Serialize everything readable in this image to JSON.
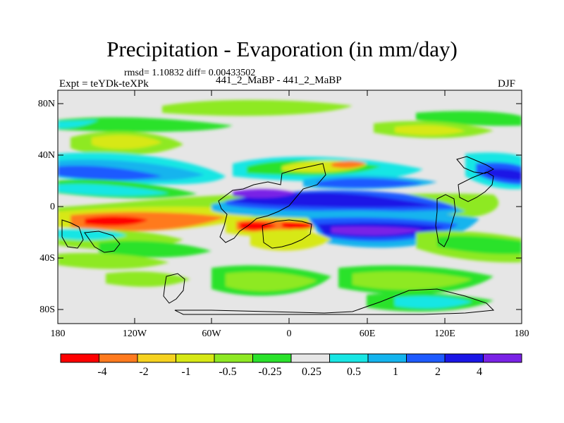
{
  "title": "Precipitation - Evaporation (in mm/day)",
  "stats": "rmsd= 1.10832 diff= 0.00433502",
  "experiment": "Expt = teYDk-teXPk",
  "runs": "441_2_MaBP - 441_2_MaBP",
  "season": "DJF",
  "y_ticks": [
    "80N",
    "40N",
    "0",
    "40S",
    "80S"
  ],
  "x_ticks": [
    "180",
    "120W",
    "60W",
    "0",
    "60E",
    "120E",
    "180"
  ],
  "colorbar": {
    "labels": [
      "-4",
      "-2",
      "-1",
      "-0.5",
      "-0.25",
      "0.25",
      "0.5",
      "1",
      "2",
      "4"
    ],
    "colors": [
      "#ff0000",
      "#ff7a1e",
      "#f6d21f",
      "#d7e815",
      "#8ee923",
      "#2ae22b",
      "#e6e6e6",
      "#18e6e4",
      "#14b4ee",
      "#1e5aff",
      "#1a16e6",
      "#7a22e6"
    ]
  }
}
